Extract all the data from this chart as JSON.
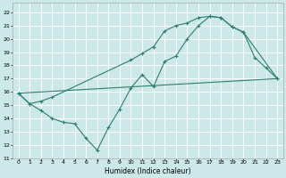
{
  "xlabel": "Humidex (Indice chaleur)",
  "bg_color": "#cce8e8",
  "grid_color": "#ffffff",
  "line_color": "#2e7d6e",
  "xlim": [
    -0.5,
    23.5
  ],
  "ylim": [
    11,
    22.7
  ],
  "yticks": [
    11,
    12,
    13,
    14,
    15,
    16,
    17,
    18,
    19,
    20,
    21,
    22
  ],
  "xticks": [
    0,
    1,
    2,
    3,
    4,
    5,
    6,
    7,
    8,
    9,
    10,
    11,
    12,
    13,
    14,
    15,
    16,
    17,
    18,
    19,
    20,
    21,
    22,
    23
  ],
  "line1_x": [
    0,
    1,
    2,
    3,
    4,
    5,
    6,
    7,
    8,
    9,
    10,
    11,
    12,
    13,
    14,
    15,
    16,
    17,
    18,
    19,
    20,
    21,
    22,
    23
  ],
  "line1_y": [
    15.9,
    15.1,
    14.6,
    14.0,
    13.7,
    13.6,
    12.5,
    11.6,
    13.3,
    14.7,
    16.3,
    17.3,
    16.4,
    18.3,
    18.7,
    20.0,
    21.0,
    21.7,
    21.6,
    20.9,
    20.5,
    18.6,
    17.8,
    17.0
  ],
  "line2_x": [
    0,
    1,
    2,
    3,
    10,
    11,
    12,
    13,
    14,
    15,
    16,
    17,
    18,
    19,
    20,
    23
  ],
  "line2_y": [
    15.9,
    15.1,
    15.3,
    15.6,
    18.4,
    18.9,
    19.4,
    20.6,
    21.0,
    21.2,
    21.6,
    21.7,
    21.6,
    20.9,
    20.5,
    17.0
  ],
  "line3_x": [
    0,
    23
  ],
  "line3_y": [
    15.9,
    17.0
  ]
}
